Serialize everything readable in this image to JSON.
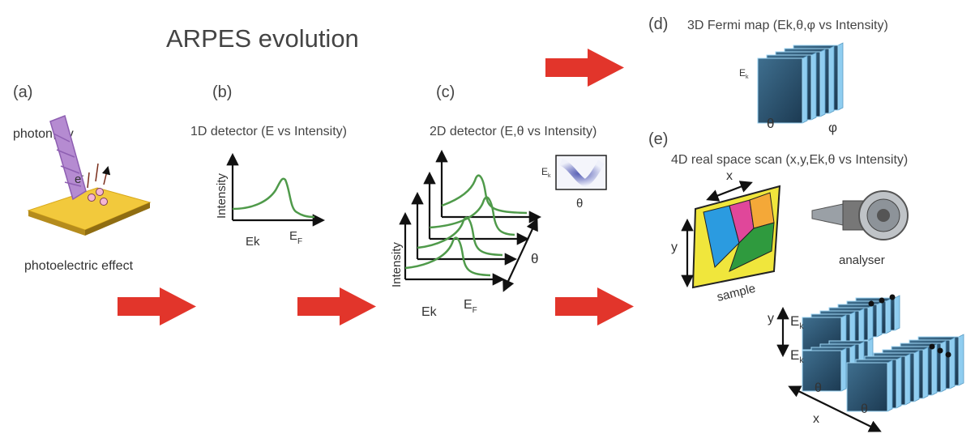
{
  "title": "ARPES evolution",
  "panel_a": {
    "label": "(a)",
    "photon": "photon, hv",
    "electron": {
      "main": "e",
      "sup": "-"
    },
    "caption": "photoelectric effect"
  },
  "panel_b": {
    "label": "(b)",
    "heading": "1D detector (E vs Intensity)",
    "y_axis": "Intensity",
    "x_axis": "Ek",
    "fermi": {
      "main": "E",
      "sub": "F"
    }
  },
  "panel_c": {
    "label": "(c)",
    "heading": "2D detector (E,θ vs Intensity)",
    "y_axis": "Intensity",
    "x_axis": "Ek",
    "fermi": {
      "main": "E",
      "sub": "F"
    },
    "angle": "θ",
    "inset": {
      "energy": {
        "main": "E",
        "sub": "k"
      },
      "angle": "θ"
    }
  },
  "panel_d": {
    "label": "(d)",
    "heading": "3D Fermi map (Ek,θ,φ vs Intensity)",
    "energy": {
      "main": "E",
      "sub": "k"
    },
    "theta": "θ",
    "phi": "φ"
  },
  "panel_e": {
    "label": "(e)",
    "heading": "4D real space scan (x,y,Ek,θ vs Intensity)",
    "sample_x": "x",
    "sample_y": "y",
    "sample": "sample",
    "analyser": "analyser",
    "map_y": "y",
    "energy_upper": {
      "main": "E",
      "sub": "k"
    },
    "energy_lower": {
      "main": "E",
      "sub": "k"
    },
    "theta_left": "θ",
    "theta_right": "θ",
    "map_x": "x"
  }
}
